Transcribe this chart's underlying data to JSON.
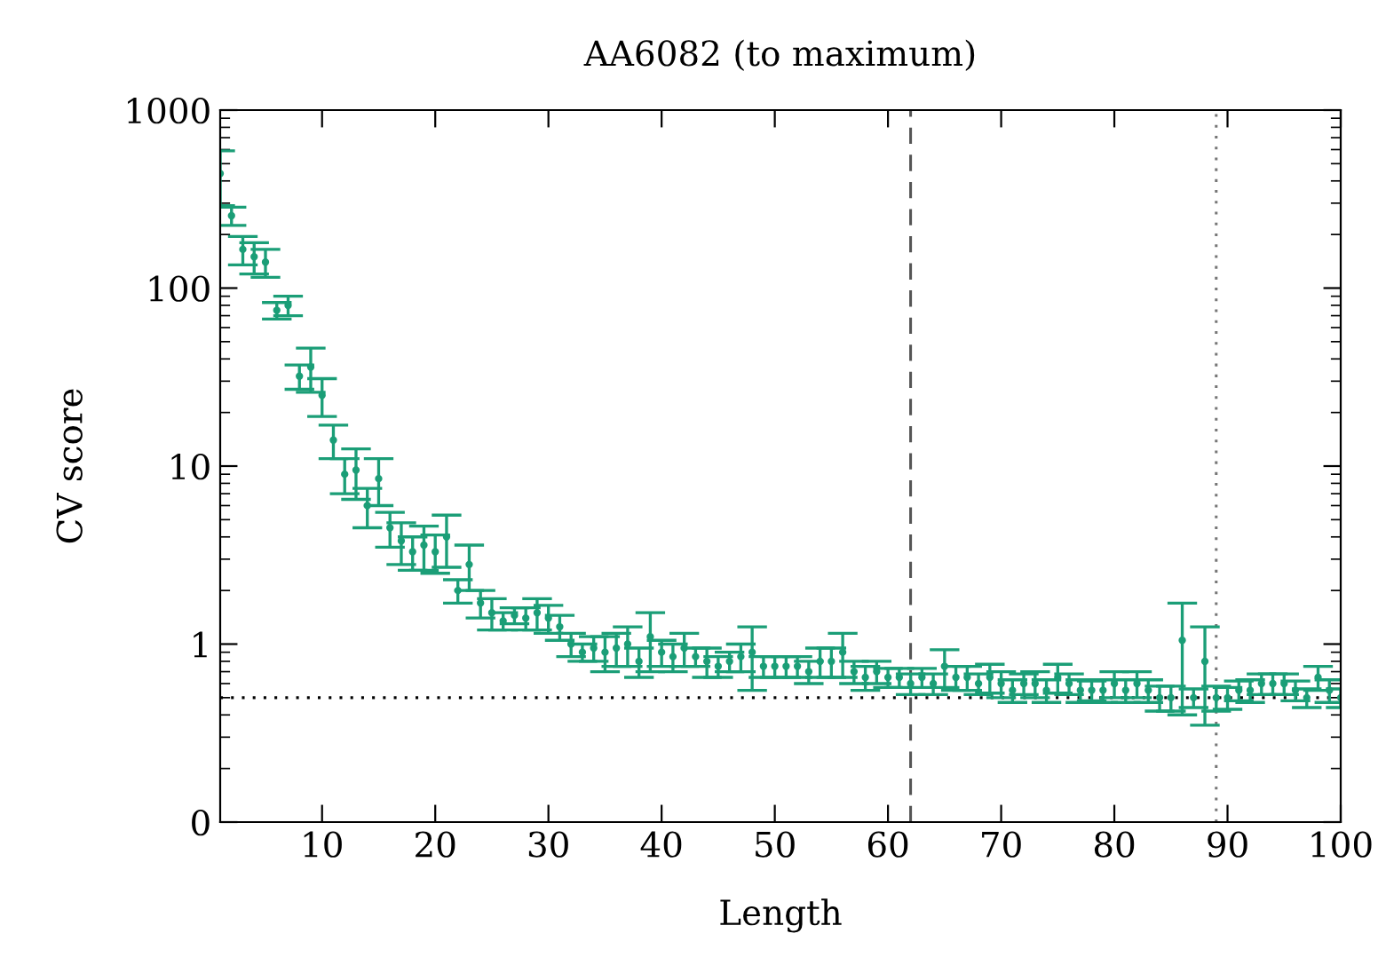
{
  "chart_data": {
    "type": "scatter",
    "title": "AA6082 (to maximum)",
    "xlabel": "Length",
    "ylabel": "CV score",
    "x": [
      1,
      2,
      3,
      4,
      5,
      6,
      7,
      8,
      9,
      10,
      11,
      12,
      13,
      14,
      15,
      16,
      17,
      18,
      19,
      20,
      21,
      22,
      23,
      24,
      25,
      26,
      27,
      28,
      29,
      30,
      31,
      32,
      33,
      34,
      35,
      36,
      37,
      38,
      39,
      40,
      41,
      42,
      43,
      44,
      45,
      46,
      47,
      48,
      49,
      50,
      51,
      52,
      53,
      54,
      55,
      56,
      57,
      58,
      59,
      60,
      61,
      62,
      63,
      64,
      65,
      66,
      67,
      68,
      69,
      70,
      71,
      72,
      73,
      74,
      75,
      76,
      77,
      78,
      79,
      80,
      81,
      82,
      83,
      84,
      85,
      86,
      87,
      88,
      89,
      90,
      91,
      92,
      93,
      94,
      95,
      96,
      97,
      98,
      99,
      100
    ],
    "series": [
      {
        "color": "#1b9e77",
        "values": [
          440,
          255,
          165,
          150,
          140,
          75,
          80,
          32,
          36,
          25,
          14,
          9,
          9.5,
          6,
          8.5,
          4.5,
          3.8,
          3.3,
          3.6,
          3.3,
          4,
          2,
          2.8,
          1.7,
          1.5,
          1.35,
          1.45,
          1.4,
          1.5,
          1.4,
          1.25,
          1.0,
          0.9,
          0.95,
          0.9,
          0.95,
          1.0,
          0.8,
          1.1,
          0.9,
          0.85,
          0.95,
          0.85,
          0.8,
          0.75,
          0.8,
          0.85,
          0.9,
          0.75,
          0.75,
          0.75,
          0.75,
          0.7,
          0.8,
          0.8,
          0.9,
          0.7,
          0.65,
          0.7,
          0.65,
          0.65,
          0.6,
          0.65,
          0.6,
          0.75,
          0.65,
          0.65,
          0.6,
          0.65,
          0.6,
          0.55,
          0.6,
          0.6,
          0.55,
          0.65,
          0.6,
          0.55,
          0.55,
          0.55,
          0.6,
          0.55,
          0.6,
          0.55,
          0.5,
          0.5,
          1.05,
          0.5,
          0.8,
          0.5,
          0.5,
          0.55,
          0.55,
          0.6,
          0.6,
          0.6,
          0.55,
          0.5,
          0.65,
          0.55,
          0.5
        ],
        "errors": [
          150,
          30,
          30,
          30,
          25,
          8,
          10,
          5,
          10,
          6,
          3,
          2,
          3,
          1.5,
          2.5,
          1,
          1,
          0.7,
          1,
          0.8,
          1.3,
          0.3,
          0.8,
          0.3,
          0.3,
          0.15,
          0.15,
          0.2,
          0.3,
          0.25,
          0.2,
          0.15,
          0.1,
          0.15,
          0.2,
          0.2,
          0.25,
          0.15,
          0.4,
          0.15,
          0.15,
          0.2,
          0.1,
          0.15,
          0.1,
          0.1,
          0.15,
          0.35,
          0.1,
          0.1,
          0.1,
          0.1,
          0.1,
          0.15,
          0.15,
          0.25,
          0.1,
          0.1,
          0.1,
          0.08,
          0.08,
          0.08,
          0.08,
          0.08,
          0.18,
          0.1,
          0.1,
          0.08,
          0.12,
          0.1,
          0.08,
          0.08,
          0.1,
          0.08,
          0.12,
          0.08,
          0.08,
          0.07,
          0.08,
          0.1,
          0.08,
          0.1,
          0.08,
          0.08,
          0.08,
          0.65,
          0.06,
          0.45,
          0.08,
          0.07,
          0.07,
          0.08,
          0.08,
          0.08,
          0.08,
          0.07,
          0.06,
          0.1,
          0.08,
          0.06
        ]
      }
    ],
    "log": "y",
    "marker": "circle",
    "grid": false,
    "xlim": [
      1,
      100
    ],
    "xticks": [
      10,
      20,
      30,
      40,
      50,
      60,
      70,
      80,
      90,
      100
    ],
    "ylim": [
      0.1,
      1000
    ],
    "yticks": [
      {
        "value": 0.1,
        "label": "0"
      },
      1,
      10,
      100,
      1000
    ],
    "ref_lines": [
      {
        "axis": "x",
        "value": 62,
        "color": "#555555",
        "line_style": "dashed"
      },
      {
        "axis": "x",
        "value": 89,
        "color": "#777777",
        "line_style": "dotted"
      },
      {
        "axis": "y",
        "value": 0.5,
        "color": "#000000",
        "line_style": "dotted"
      }
    ]
  }
}
